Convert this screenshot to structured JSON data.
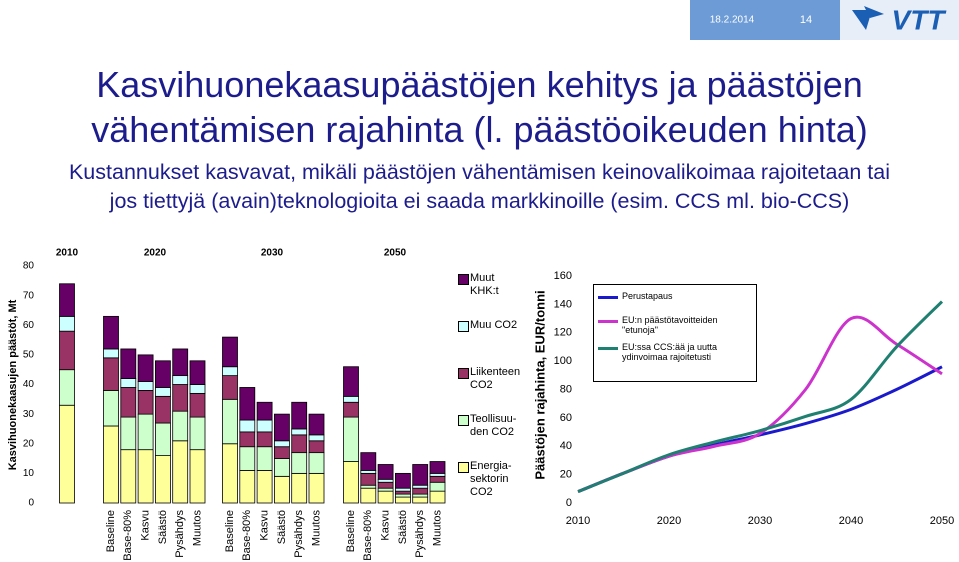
{
  "slide": {
    "date": "18.2.2014",
    "page": "14",
    "logo": "VTT",
    "title_lines": [
      "Kasvihuonekaasupäästöjen kehitys ja päästöjen",
      "vähentämisen rajahinta (l. päästöoikeuden hinta)"
    ],
    "subtitle_lines": [
      "Kustannukset kasvavat, mikäli päästöjen vähentämisen keinovalikoimaa rajoitetaan tai",
      "jos tiettyjä (avain)teknologioita ei saada markkinoille (esim. CCS ml. bio-CCS)"
    ]
  },
  "chart_data": [
    {
      "type": "bar",
      "stacked": true,
      "ylabel": "Kasvihuonekaasujen päästöt, Mt",
      "groups": [
        "2010",
        "2020",
        "2030",
        "2050"
      ],
      "categories": [
        null,
        "Baseline",
        "Base-80%",
        "Kasvu",
        "Säästö",
        "Pysähdys",
        "Muutos",
        "Baseline",
        "Base-80%",
        "Kasvu",
        "Säästö",
        "Pysähdys",
        "Muutos",
        "Baseline",
        "Base-80%",
        "Kasvu",
        "Säästö",
        "Pysähdys",
        "Muutos"
      ],
      "series": [
        {
          "name": "Energia-\nsektorin\nCO2",
          "color": "#ffff99",
          "values": [
            33,
            26,
            18,
            18,
            16,
            21,
            18,
            20,
            11,
            11,
            9,
            10,
            10,
            14,
            5,
            4,
            2,
            2,
            4
          ]
        },
        {
          "name": "Teollisuu-\nden CO2",
          "color": "#ccffcc",
          "values": [
            12,
            12,
            11,
            12,
            11,
            10,
            11,
            15,
            8,
            8,
            6,
            7,
            7,
            15,
            1,
            1,
            1,
            1,
            3
          ]
        },
        {
          "name": "Liikenteen\nCO2",
          "color": "#993366",
          "values": [
            13,
            11,
            10,
            8,
            9,
            9,
            8,
            8,
            5,
            5,
            4,
            6,
            4,
            5,
            4,
            2,
            1,
            2,
            2
          ]
        },
        {
          "name": "Muu CO2",
          "color": "#ccffff",
          "values": [
            5,
            3,
            3,
            3,
            3,
            3,
            3,
            3,
            4,
            4,
            2,
            2,
            2,
            2,
            1,
            1,
            1,
            1,
            1
          ]
        },
        {
          "name": "Muut\nKHK:t",
          "color": "#660066",
          "values": [
            11,
            11,
            10,
            9,
            9,
            9,
            8,
            10,
            11,
            6,
            9,
            9,
            7,
            10,
            6,
            5,
            5,
            7,
            4
          ]
        }
      ],
      "ylim": [
        0,
        80
      ],
      "yticks": [
        0,
        10,
        20,
        30,
        40,
        50,
        60,
        70,
        80
      ]
    },
    {
      "type": "line",
      "ylabel": "Päästöjen rajahinta, EUR/tonni",
      "x": [
        2010,
        2015,
        2020,
        2025,
        2030,
        2035,
        2040,
        2045,
        2050
      ],
      "series": [
        {
          "name": "Perustapaus",
          "color": "#1a1acc",
          "values": [
            8,
            21,
            33,
            41,
            48,
            56,
            66,
            80,
            96
          ]
        },
        {
          "name": "EU:n päästötavoitteiden \"etunoja\"",
          "color": "#cc33cc",
          "values": [
            8,
            21,
            33,
            40,
            49,
            80,
            130,
            112,
            91
          ]
        },
        {
          "name": "EU:ssa CCS:ää ja uutta ydinvoimaa rajoitetusti",
          "color": "#1f7f70",
          "values": [
            8,
            21,
            34,
            43,
            51,
            61,
            73,
            110,
            142
          ]
        }
      ],
      "xlim": [
        2010,
        2050
      ],
      "xticks": [
        2010,
        2020,
        2030,
        2040,
        2050
      ],
      "ylim": [
        0,
        160
      ],
      "yticks": [
        0,
        20,
        40,
        60,
        80,
        100,
        120,
        140,
        160
      ]
    }
  ]
}
